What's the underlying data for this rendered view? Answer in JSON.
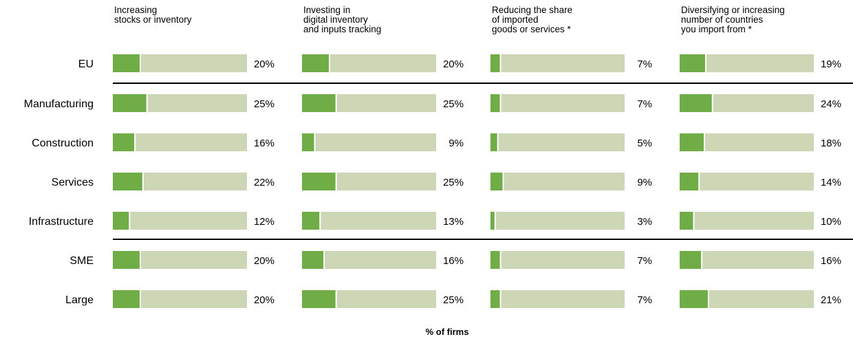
{
  "chart_data": {
    "type": "bar",
    "categories": [
      "EU",
      "Manufacturing",
      "Construction",
      "Services",
      "Infrastructure",
      "SME",
      "Large"
    ],
    "xlim": [
      0,
      100
    ],
    "color": "#70ad47",
    "track_color": "#cdd7b6",
    "xlabel": "% of firms",
    "series": [
      {
        "name": "Increasing\nstocks or inventory",
        "values": [
          20,
          25,
          16,
          22,
          12,
          20,
          20
        ],
        "value_labels": [
          "20%",
          "25%",
          "16%",
          "22%",
          "12%",
          "20%",
          "20%"
        ]
      },
      {
        "name": "Investing in\ndigital inventory\nand inputs tracking",
        "values": [
          20,
          25,
          9,
          25,
          13,
          16,
          25
        ],
        "value_labels": [
          "20%",
          "25%",
          "9%",
          "25%",
          "13%",
          "16%",
          "25%"
        ]
      },
      {
        "name": "Reducing the share\nof imported\ngoods or services *",
        "values": [
          7,
          7,
          5,
          9,
          3,
          7,
          7
        ],
        "value_labels": [
          "7%",
          "7%",
          "5%",
          "9%",
          "3%",
          "7%",
          "7%"
        ]
      },
      {
        "name": "Diversifying or increasing\nnumber of countries\nyou import from *",
        "values": [
          19,
          24,
          18,
          14,
          10,
          16,
          21
        ],
        "value_labels": [
          "19%",
          "24%",
          "18%",
          "14%",
          "10%",
          "16%",
          "21%"
        ]
      }
    ]
  }
}
